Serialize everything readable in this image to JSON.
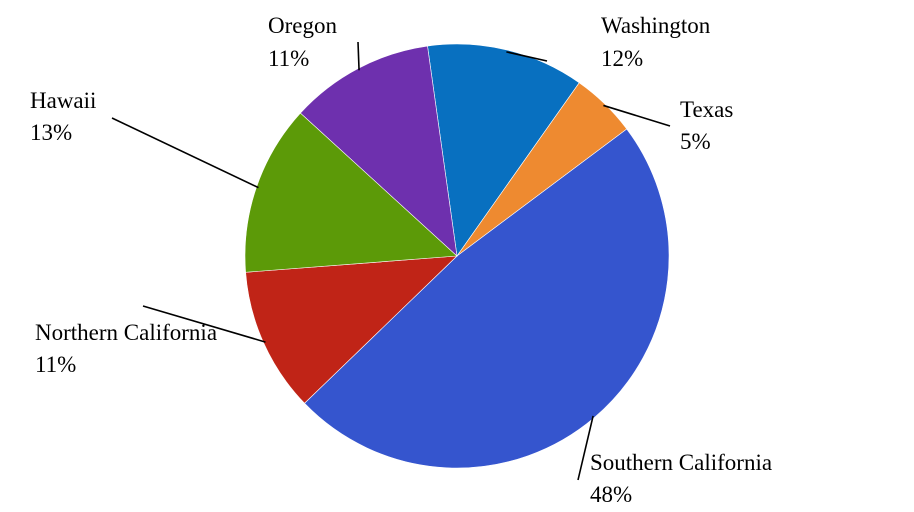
{
  "chart_data": {
    "type": "pie",
    "start_angle_deg": 352,
    "direction": "clockwise",
    "legend": "none",
    "slices": [
      {
        "key": "washington",
        "label": "Washington",
        "pct_label": "12%",
        "value": 12,
        "color": "#0870C0"
      },
      {
        "key": "texas",
        "label": "Texas",
        "pct_label": "5%",
        "value": 5,
        "color": "#EE8A30"
      },
      {
        "key": "southern-california",
        "label": "Southern California",
        "pct_label": "48%",
        "value": 48,
        "color": "#3555CE"
      },
      {
        "key": "northern-california",
        "label": "Northern California",
        "pct_label": "11%",
        "value": 11,
        "color": "#C02417"
      },
      {
        "key": "hawaii",
        "label": "Hawaii",
        "pct_label": "13%",
        "value": 13,
        "color": "#5C9A08"
      },
      {
        "key": "oregon",
        "label": "Oregon",
        "pct_label": "11%",
        "value": 11,
        "color": "#6E30AE"
      }
    ]
  }
}
